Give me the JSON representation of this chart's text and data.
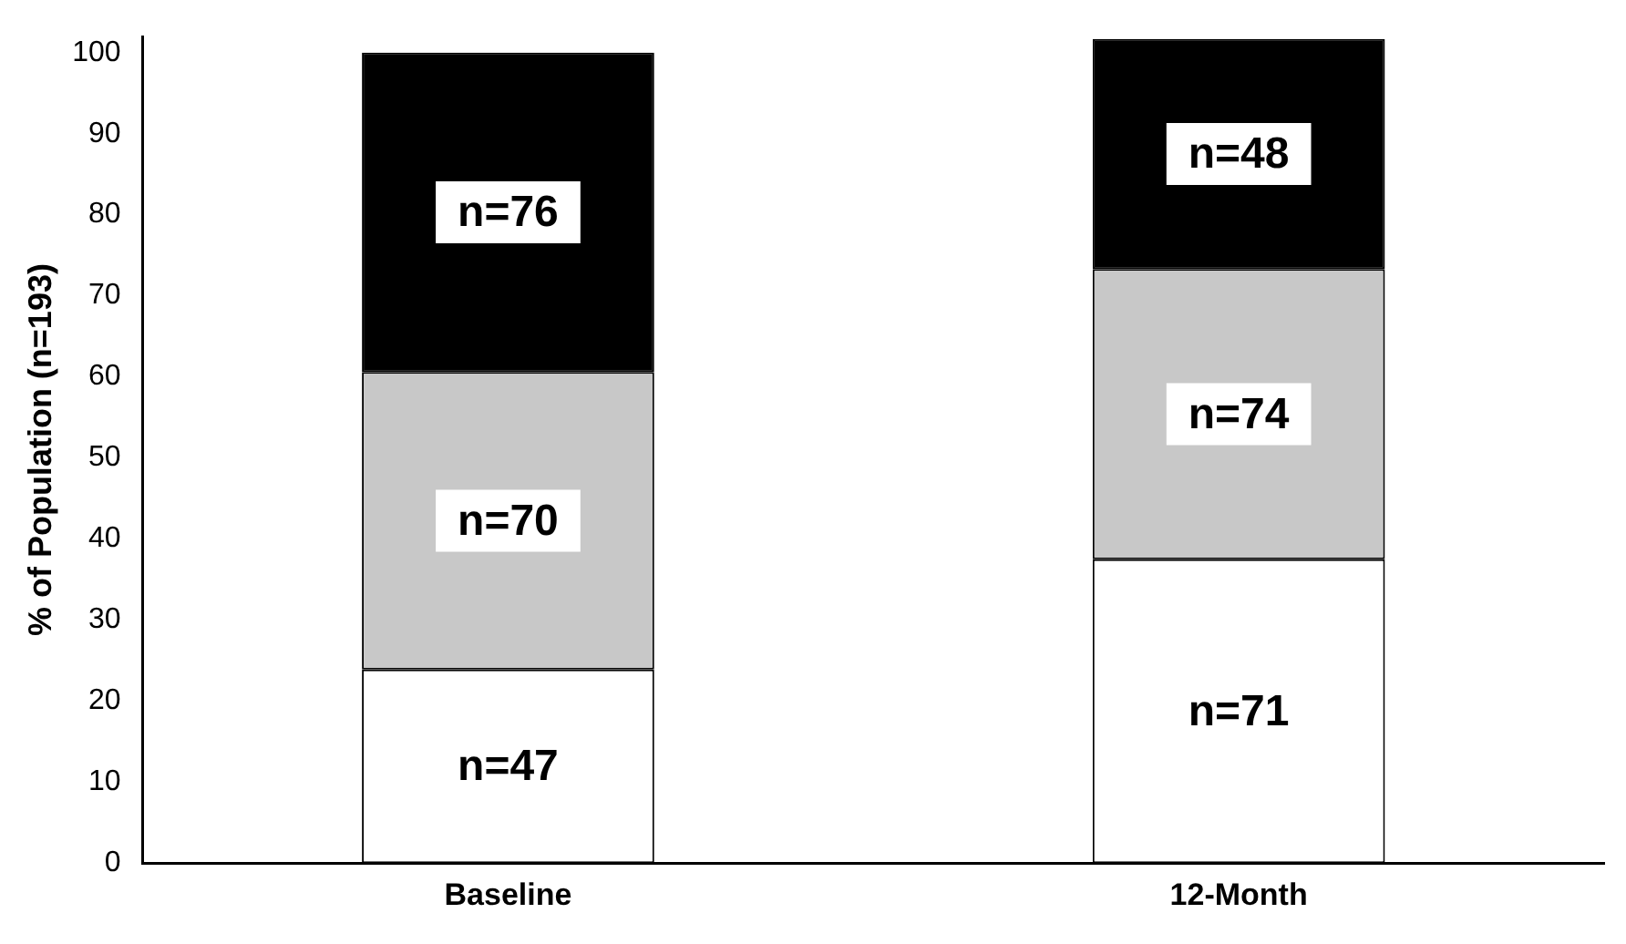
{
  "chart_data": {
    "type": "bar",
    "stacked": true,
    "ylabel": "% of Population (n=193)",
    "categories": [
      "Baseline",
      "12-Month"
    ],
    "ylim": [
      0,
      102
    ],
    "yticks": [
      0,
      10,
      20,
      30,
      40,
      50,
      60,
      70,
      80,
      90,
      100
    ],
    "grid": false,
    "legend": false,
    "series": [
      {
        "color": "#ffffff",
        "values": [
          23.9,
          37.5
        ]
      },
      {
        "color": "#c8c8c8",
        "values": [
          36.7,
          35.8
        ]
      },
      {
        "color": "#000000",
        "values": [
          39.4,
          28.4
        ]
      }
    ],
    "annotations": [
      "n=47",
      "n=70",
      "n=76",
      "n=71",
      "n=74",
      "n=48"
    ]
  }
}
